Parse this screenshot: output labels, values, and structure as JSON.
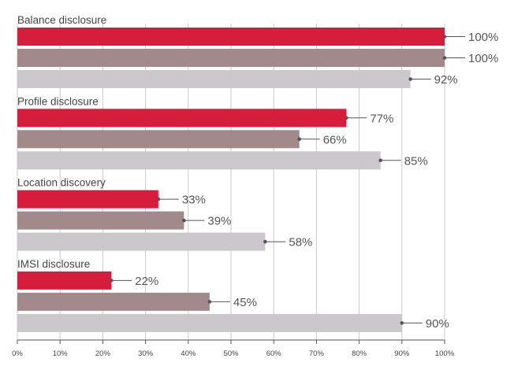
{
  "chart_data": {
    "type": "bar",
    "orientation": "horizontal",
    "groups": [
      {
        "label": "Balance disclosure",
        "values": [
          100,
          100,
          92
        ],
        "labels": [
          "100%",
          "100%",
          "92%"
        ]
      },
      {
        "label": "Profile disclosure",
        "values": [
          77,
          66,
          85
        ],
        "labels": [
          "77%",
          "66%",
          "85%"
        ]
      },
      {
        "label": "Location discovery",
        "values": [
          33,
          39,
          58
        ],
        "labels": [
          "33%",
          "39%",
          "58%"
        ]
      },
      {
        "label": "IMSI disclosure",
        "values": [
          22,
          45,
          90
        ],
        "labels": [
          "22%",
          "45%",
          "90%"
        ]
      }
    ],
    "series_colors": [
      "#d61e3c",
      "#a38a8a",
      "#cbc8cb"
    ],
    "xlim": [
      0,
      100
    ],
    "ticks": [
      {
        "value": 0,
        "label": "0%"
      },
      {
        "value": 10,
        "label": "10%"
      },
      {
        "value": 20,
        "label": "20%"
      },
      {
        "value": 30,
        "label": "30%"
      },
      {
        "value": 40,
        "label": "40%"
      },
      {
        "value": 50,
        "label": "50%"
      },
      {
        "value": 60,
        "label": "60%"
      },
      {
        "value": 70,
        "label": "70%"
      },
      {
        "value": 80,
        "label": "80%"
      },
      {
        "value": 90,
        "label": "90%"
      },
      {
        "value": 100,
        "label": "100%"
      }
    ],
    "grid": true,
    "legend": "none"
  }
}
